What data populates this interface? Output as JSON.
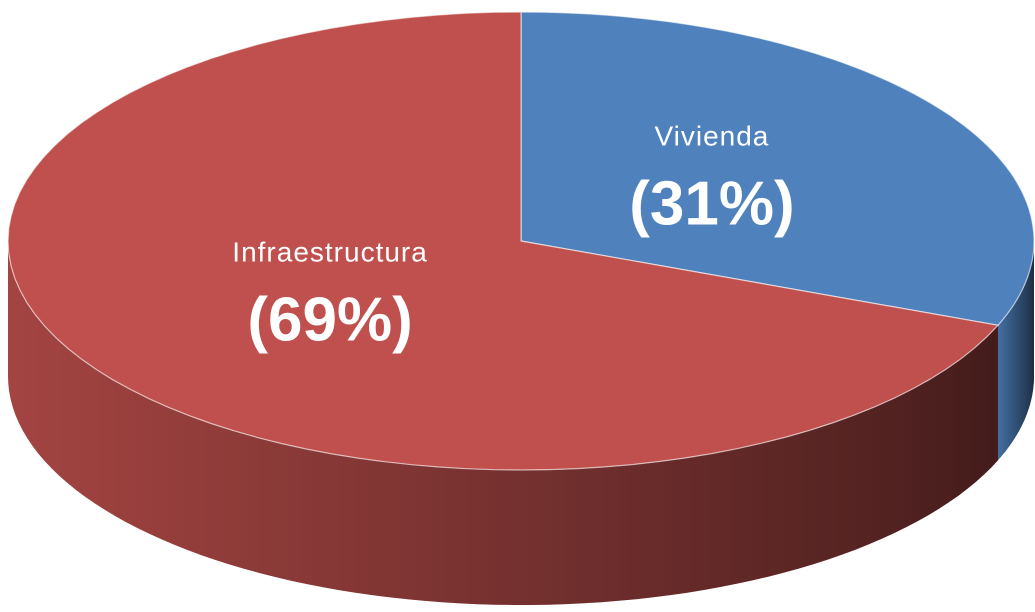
{
  "chart_data": {
    "type": "pie",
    "categories": [
      "Vivienda",
      "Infraestructura"
    ],
    "values": [
      31,
      69
    ],
    "value_labels": [
      "(31%)",
      "(69%)"
    ],
    "colors": [
      "#4f81bd",
      "#c0504d"
    ]
  }
}
